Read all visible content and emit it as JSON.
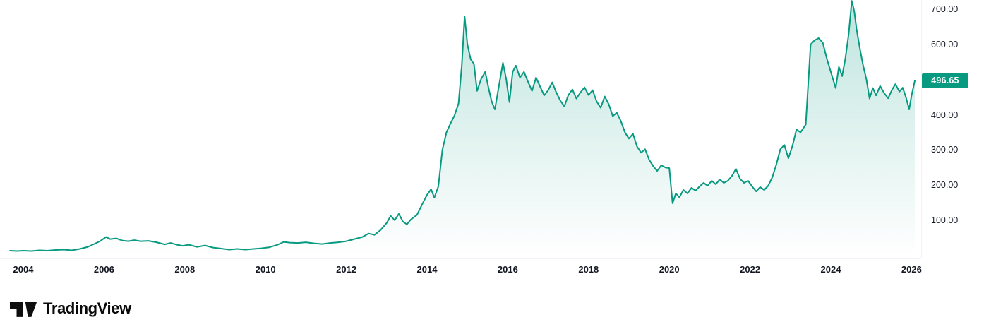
{
  "chart_data": {
    "type": "area",
    "line_color": "#089981",
    "fill_top_color": "rgba(8,153,129,0.26)",
    "fill_bottom_color": "rgba(8,153,129,0)",
    "badge_color": "#089981",
    "last_price": 496.65,
    "last_price_label": "496.65",
    "x_range": [
      2003.65,
      2026.35
    ],
    "y_range": [
      0,
      735
    ],
    "grid": "off",
    "x_ticks": [
      2004,
      2006,
      2008,
      2010,
      2012,
      2014,
      2016,
      2018,
      2020,
      2022,
      2024,
      2026
    ],
    "y_ticks": [
      {
        "value": 700,
        "label": "700.00"
      },
      {
        "value": 600,
        "label": "600.00"
      },
      {
        "value": 400,
        "label": "400.00"
      },
      {
        "value": 300,
        "label": "300.00"
      },
      {
        "value": 200,
        "label": "200.00"
      },
      {
        "value": 100,
        "label": "100.00"
      }
    ],
    "points": [
      [
        2003.67,
        13
      ],
      [
        2003.85,
        12
      ],
      [
        2004.0,
        13
      ],
      [
        2004.2,
        12
      ],
      [
        2004.4,
        14
      ],
      [
        2004.6,
        13
      ],
      [
        2004.8,
        15
      ],
      [
        2005.0,
        16
      ],
      [
        2005.2,
        14
      ],
      [
        2005.4,
        18
      ],
      [
        2005.6,
        24
      ],
      [
        2005.75,
        32
      ],
      [
        2005.9,
        40
      ],
      [
        2006.05,
        52
      ],
      [
        2006.15,
        46
      ],
      [
        2006.3,
        48
      ],
      [
        2006.45,
        42
      ],
      [
        2006.6,
        40
      ],
      [
        2006.75,
        43
      ],
      [
        2006.9,
        40
      ],
      [
        2007.1,
        41
      ],
      [
        2007.3,
        37
      ],
      [
        2007.5,
        31
      ],
      [
        2007.65,
        35
      ],
      [
        2007.8,
        30
      ],
      [
        2007.95,
        27
      ],
      [
        2008.1,
        30
      ],
      [
        2008.3,
        24
      ],
      [
        2008.5,
        28
      ],
      [
        2008.7,
        22
      ],
      [
        2008.9,
        19
      ],
      [
        2009.1,
        16
      ],
      [
        2009.3,
        18
      ],
      [
        2009.5,
        16
      ],
      [
        2009.7,
        18
      ],
      [
        2009.9,
        20
      ],
      [
        2010.1,
        23
      ],
      [
        2010.3,
        30
      ],
      [
        2010.45,
        38
      ],
      [
        2010.6,
        36
      ],
      [
        2010.8,
        35
      ],
      [
        2011.0,
        37
      ],
      [
        2011.2,
        34
      ],
      [
        2011.4,
        32
      ],
      [
        2011.6,
        35
      ],
      [
        2011.8,
        37
      ],
      [
        2012.0,
        40
      ],
      [
        2012.2,
        46
      ],
      [
        2012.4,
        52
      ],
      [
        2012.55,
        62
      ],
      [
        2012.7,
        58
      ],
      [
        2012.85,
        72
      ],
      [
        2013.0,
        92
      ],
      [
        2013.1,
        112
      ],
      [
        2013.2,
        100
      ],
      [
        2013.3,
        118
      ],
      [
        2013.4,
        96
      ],
      [
        2013.5,
        88
      ],
      [
        2013.6,
        102
      ],
      [
        2013.75,
        115
      ],
      [
        2013.9,
        150
      ],
      [
        2014.0,
        172
      ],
      [
        2014.1,
        188
      ],
      [
        2014.18,
        164
      ],
      [
        2014.28,
        196
      ],
      [
        2014.38,
        300
      ],
      [
        2014.48,
        350
      ],
      [
        2014.58,
        375
      ],
      [
        2014.68,
        398
      ],
      [
        2014.78,
        432
      ],
      [
        2014.86,
        540
      ],
      [
        2014.93,
        680
      ],
      [
        2015.0,
        600
      ],
      [
        2015.08,
        558
      ],
      [
        2015.16,
        545
      ],
      [
        2015.24,
        468
      ],
      [
        2015.34,
        502
      ],
      [
        2015.44,
        522
      ],
      [
        2015.52,
        478
      ],
      [
        2015.6,
        438
      ],
      [
        2015.68,
        415
      ],
      [
        2015.78,
        482
      ],
      [
        2015.88,
        548
      ],
      [
        2015.96,
        502
      ],
      [
        2016.04,
        436
      ],
      [
        2016.12,
        522
      ],
      [
        2016.2,
        540
      ],
      [
        2016.3,
        506
      ],
      [
        2016.4,
        522
      ],
      [
        2016.5,
        494
      ],
      [
        2016.6,
        468
      ],
      [
        2016.7,
        506
      ],
      [
        2016.8,
        480
      ],
      [
        2016.9,
        455
      ],
      [
        2017.0,
        470
      ],
      [
        2017.1,
        492
      ],
      [
        2017.2,
        464
      ],
      [
        2017.3,
        440
      ],
      [
        2017.4,
        424
      ],
      [
        2017.5,
        456
      ],
      [
        2017.6,
        472
      ],
      [
        2017.7,
        446
      ],
      [
        2017.8,
        464
      ],
      [
        2017.9,
        478
      ],
      [
        2018.0,
        456
      ],
      [
        2018.1,
        470
      ],
      [
        2018.2,
        438
      ],
      [
        2018.3,
        420
      ],
      [
        2018.4,
        452
      ],
      [
        2018.5,
        430
      ],
      [
        2018.6,
        396
      ],
      [
        2018.7,
        406
      ],
      [
        2018.8,
        382
      ],
      [
        2018.9,
        350
      ],
      [
        2019.0,
        332
      ],
      [
        2019.1,
        346
      ],
      [
        2019.2,
        310
      ],
      [
        2019.3,
        292
      ],
      [
        2019.4,
        302
      ],
      [
        2019.5,
        272
      ],
      [
        2019.6,
        254
      ],
      [
        2019.7,
        240
      ],
      [
        2019.8,
        256
      ],
      [
        2019.9,
        250
      ],
      [
        2020.0,
        248
      ],
      [
        2020.08,
        148
      ],
      [
        2020.16,
        176
      ],
      [
        2020.25,
        165
      ],
      [
        2020.35,
        186
      ],
      [
        2020.45,
        176
      ],
      [
        2020.55,
        192
      ],
      [
        2020.65,
        184
      ],
      [
        2020.75,
        196
      ],
      [
        2020.85,
        206
      ],
      [
        2020.95,
        198
      ],
      [
        2021.05,
        212
      ],
      [
        2021.15,
        202
      ],
      [
        2021.25,
        216
      ],
      [
        2021.35,
        206
      ],
      [
        2021.45,
        212
      ],
      [
        2021.55,
        226
      ],
      [
        2021.65,
        246
      ],
      [
        2021.75,
        218
      ],
      [
        2021.85,
        206
      ],
      [
        2021.95,
        212
      ],
      [
        2022.05,
        196
      ],
      [
        2022.15,
        182
      ],
      [
        2022.25,
        194
      ],
      [
        2022.35,
        186
      ],
      [
        2022.45,
        198
      ],
      [
        2022.55,
        222
      ],
      [
        2022.65,
        258
      ],
      [
        2022.75,
        302
      ],
      [
        2022.85,
        314
      ],
      [
        2022.95,
        276
      ],
      [
        2023.05,
        312
      ],
      [
        2023.15,
        358
      ],
      [
        2023.25,
        350
      ],
      [
        2023.38,
        372
      ],
      [
        2023.5,
        600
      ],
      [
        2023.6,
        612
      ],
      [
        2023.7,
        618
      ],
      [
        2023.8,
        605
      ],
      [
        2023.9,
        560
      ],
      [
        2024.0,
        522
      ],
      [
        2024.12,
        476
      ],
      [
        2024.2,
        536
      ],
      [
        2024.28,
        510
      ],
      [
        2024.36,
        560
      ],
      [
        2024.44,
        628
      ],
      [
        2024.52,
        724
      ],
      [
        2024.58,
        695
      ],
      [
        2024.64,
        642
      ],
      [
        2024.72,
        588
      ],
      [
        2024.8,
        540
      ],
      [
        2024.88,
        502
      ],
      [
        2024.96,
        446
      ],
      [
        2025.04,
        476
      ],
      [
        2025.12,
        455
      ],
      [
        2025.22,
        482
      ],
      [
        2025.32,
        462
      ],
      [
        2025.42,
        447
      ],
      [
        2025.52,
        472
      ],
      [
        2025.6,
        487
      ],
      [
        2025.7,
        466
      ],
      [
        2025.78,
        477
      ],
      [
        2025.86,
        450
      ],
      [
        2025.94,
        415
      ],
      [
        2026.0,
        455
      ],
      [
        2026.08,
        496.65
      ]
    ]
  },
  "footer": {
    "brand": "TradingView"
  }
}
